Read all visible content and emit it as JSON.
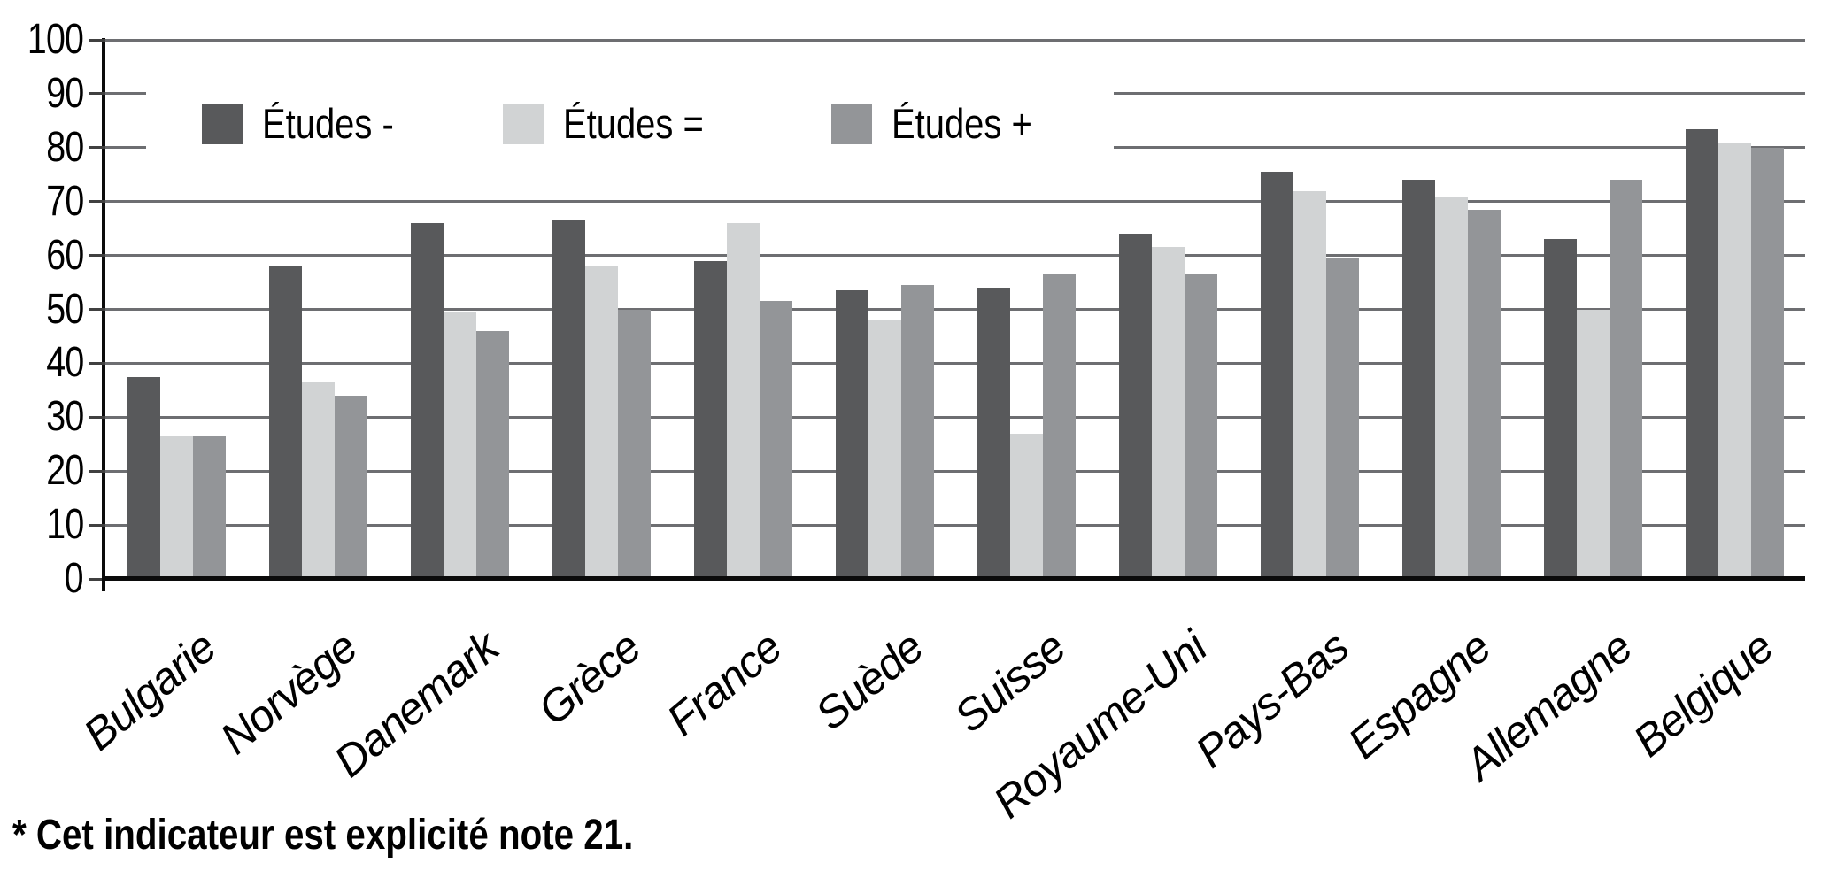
{
  "chart_data": {
    "type": "bar",
    "title": "",
    "categories": [
      "Bulgarie",
      "Norvège",
      "Danemark",
      "Grèce",
      "France",
      "Suède",
      "Suisse",
      "Royaume-Uni",
      "Pays-Bas",
      "Espagne",
      "Allemagne",
      "Belgique"
    ],
    "series": [
      {
        "name": "Études -",
        "color": "#58595b",
        "values": [
          37.5,
          58,
          66,
          66.5,
          59,
          53.5,
          54,
          64,
          75.5,
          74,
          63,
          83.5
        ]
      },
      {
        "name": "Études =",
        "color": "#d1d3d4",
        "values": [
          26.5,
          36.5,
          49.5,
          58,
          66,
          48,
          27,
          61.5,
          72,
          71,
          50,
          81
        ]
      },
      {
        "name": "Études +",
        "color": "#939598",
        "values": [
          26.5,
          34,
          46,
          50,
          51.5,
          54.5,
          56.5,
          56.5,
          59.5,
          68.5,
          74,
          80
        ]
      }
    ],
    "ylim": [
      0,
      100
    ],
    "yticks": [
      0,
      10,
      20,
      30,
      40,
      50,
      60,
      70,
      80,
      90,
      100
    ],
    "grid": true,
    "legend_position": "top-inside",
    "footnote": "* Cet indicateur est explicité note 21."
  },
  "colors": {
    "background": "#ffffff",
    "gridline": "#6d6e71",
    "axis": "#0b0b0b",
    "tick": "#404040",
    "text": "#000000"
  }
}
